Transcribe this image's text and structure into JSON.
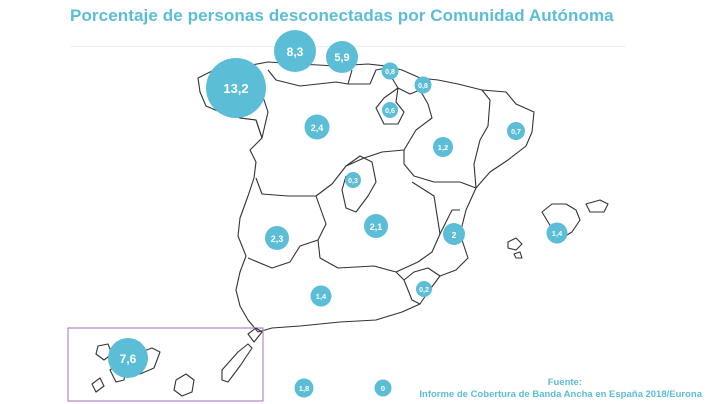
{
  "title": "Porcentaje de personas desconectadas por Comunidad Autónoma",
  "source": {
    "label": "Fuente:",
    "text": "Informe de Cobertura de Banda Ancha en España 2018/Eurona"
  },
  "colors": {
    "accent": "#5bbdd6",
    "bubble": "#5bbdd6",
    "inset_border": "#b489c7",
    "outline": "#333333"
  },
  "bubbles": [
    {
      "region": "Galicia",
      "value": 13.2,
      "label": "13,2"
    },
    {
      "region": "Asturias",
      "value": 8.3,
      "label": "8,3"
    },
    {
      "region": "Cantabria",
      "value": 5.9,
      "label": "5,9"
    },
    {
      "region": "País Vasco",
      "value": 0.8,
      "label": "0,8"
    },
    {
      "region": "Navarra",
      "value": 0.8,
      "label": "0,8"
    },
    {
      "region": "La Rioja",
      "value": 0.6,
      "label": "0,6"
    },
    {
      "region": "Castilla y León",
      "value": 2.4,
      "label": "2,4"
    },
    {
      "region": "Aragón",
      "value": 1.2,
      "label": "1,2"
    },
    {
      "region": "Cataluña",
      "value": 0.7,
      "label": "0,7"
    },
    {
      "region": "Madrid",
      "value": 0.3,
      "label": "0,3"
    },
    {
      "region": "Extremadura",
      "value": 2.3,
      "label": "2,3"
    },
    {
      "region": "Castilla-La Mancha",
      "value": 2.1,
      "label": "2,1"
    },
    {
      "region": "Comunidad Valenciana",
      "value": 2,
      "label": "2"
    },
    {
      "region": "Islas Baleares",
      "value": 1.4,
      "label": "1,4"
    },
    {
      "region": "Andalucía",
      "value": 1.4,
      "label": "1,4"
    },
    {
      "region": "Murcia",
      "value": 0.2,
      "label": "0,2"
    },
    {
      "region": "Canarias",
      "value": 7.6,
      "label": "7,6"
    },
    {
      "region": "Ceuta",
      "value": 1.8,
      "label": "1,8"
    },
    {
      "region": "Melilla",
      "value": 0,
      "label": "0"
    }
  ]
}
